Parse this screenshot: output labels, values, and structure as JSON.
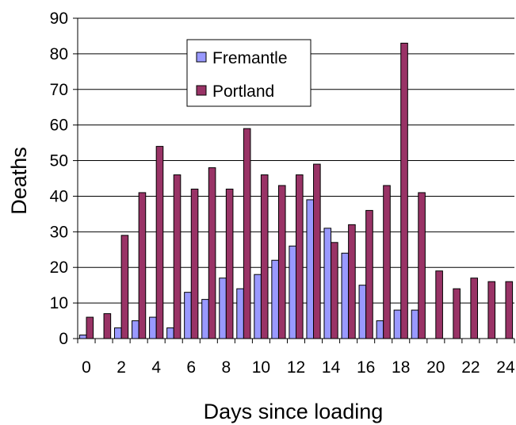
{
  "chart_data": {
    "type": "bar",
    "xlabel": "Days since loading",
    "ylabel": "Deaths",
    "ylim": [
      0,
      90
    ],
    "y_ticks": [
      0,
      10,
      20,
      30,
      40,
      50,
      60,
      70,
      80,
      90
    ],
    "categories": [
      0,
      1,
      2,
      3,
      4,
      5,
      6,
      7,
      8,
      9,
      10,
      11,
      12,
      13,
      14,
      15,
      16,
      17,
      18,
      19,
      20,
      21,
      22,
      23,
      24
    ],
    "x_tick_labels": [
      "0",
      "",
      "2",
      "",
      "4",
      "",
      "6",
      "",
      "8",
      "",
      "10",
      "",
      "12",
      "",
      "14",
      "",
      "16",
      "",
      "18",
      "",
      "20",
      "",
      "22",
      "",
      "24"
    ],
    "grid": "horizontal",
    "legend_position": "top-center",
    "series": [
      {
        "name": "Fremantle",
        "color": "#9999ff",
        "values": [
          1,
          0,
          3,
          5,
          6,
          3,
          13,
          11,
          17,
          14,
          18,
          22,
          26,
          39,
          31,
          24,
          15,
          5,
          8,
          8,
          0,
          0,
          0,
          0,
          0
        ]
      },
      {
        "name": "Portland",
        "color": "#993366",
        "values": [
          6,
          7,
          29,
          41,
          54,
          46,
          42,
          48,
          42,
          59,
          46,
          43,
          46,
          49,
          27,
          32,
          36,
          43,
          83,
          41,
          19,
          14,
          17,
          16,
          16
        ]
      }
    ]
  }
}
